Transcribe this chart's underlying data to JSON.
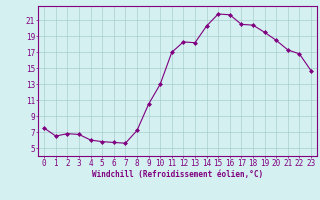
{
  "x": [
    0,
    1,
    2,
    3,
    4,
    5,
    6,
    7,
    8,
    9,
    10,
    11,
    12,
    13,
    14,
    15,
    16,
    17,
    18,
    19,
    20,
    21,
    22,
    23
  ],
  "y": [
    7.5,
    6.5,
    6.8,
    6.7,
    6.0,
    5.8,
    5.7,
    5.6,
    7.2,
    10.5,
    13.0,
    17.0,
    18.3,
    18.2,
    20.3,
    21.8,
    21.7,
    20.5,
    20.4,
    19.5,
    18.5,
    17.3,
    16.8,
    14.7
  ],
  "line_color": "#800080",
  "marker": "D",
  "marker_size": 2.0,
  "bg_color": "#d4f0f0",
  "grid_color": "#aacece",
  "xlabel": "Windchill (Refroidissement éolien,°C)",
  "xlabel_fontsize": 5.5,
  "xtick_labels": [
    "0",
    "1",
    "2",
    "3",
    "4",
    "5",
    "6",
    "7",
    "8",
    "9",
    "10",
    "11",
    "12",
    "13",
    "14",
    "15",
    "16",
    "17",
    "18",
    "19",
    "20",
    "21",
    "22",
    "23"
  ],
  "ytick_values": [
    5,
    7,
    9,
    11,
    13,
    15,
    17,
    19,
    21
  ],
  "ylim": [
    4.0,
    22.8
  ],
  "xlim": [
    -0.5,
    23.5
  ],
  "tick_color": "#800080",
  "tick_fontsize": 5.5,
  "spine_color": "#800080",
  "linewidth": 0.8
}
